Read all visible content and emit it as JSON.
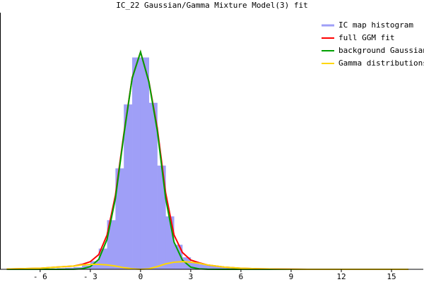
{
  "chart_data": {
    "type": "histogram",
    "title": "IC_22 Gaussian/Gamma Mixture Model(3) fit",
    "name": "IC map histogram",
    "color": "#9f9ff7",
    "bins": [
      -6,
      -5.5,
      -5,
      -4.5,
      -4,
      -3.5,
      -3,
      -2.5,
      -2,
      -1.5,
      -1,
      -0.5,
      0,
      0.5,
      1,
      1.5,
      2,
      2.5,
      3,
      3.5,
      4,
      4.5,
      5,
      5.5,
      6,
      6.5,
      7,
      7.5,
      8
    ],
    "values": [
      0.001,
      0.001,
      0.002,
      0.003,
      0.004,
      0.007,
      0.015,
      0.038,
      0.09,
      0.185,
      0.302,
      0.388,
      0.388,
      0.305,
      0.19,
      0.097,
      0.045,
      0.022,
      0.013,
      0.009,
      0.007,
      0.005,
      0.004,
      0.003,
      0.002,
      0.001,
      0.001,
      0.001
    ],
    "overlays": {
      "type": "line",
      "x": [
        -8,
        -6,
        -5,
        -4,
        -3.5,
        -3,
        -2.5,
        -2,
        -1.5,
        -1,
        -0.5,
        0,
        0.5,
        1,
        1.5,
        2,
        2.5,
        3,
        3.5,
        4,
        5,
        6,
        7,
        8,
        10,
        12,
        14,
        16
      ],
      "series": [
        {
          "name": "full GGM fit",
          "color": "#ff0000",
          "values": [
            0.0005,
            0.002,
            0.004,
            0.006,
            0.009,
            0.014,
            0.027,
            0.063,
            0.136,
            0.248,
            0.351,
            0.398,
            0.344,
            0.259,
            0.14,
            0.063,
            0.031,
            0.017,
            0.012,
            0.008,
            0.004,
            0.002,
            0.001,
            0.0005,
            0,
            0,
            0,
            0
          ]
        },
        {
          "name": "background Gaussian",
          "color": "#00a000",
          "values": [
            0,
            0,
            0,
            0.0001,
            0.0009,
            0.005,
            0.018,
            0.055,
            0.13,
            0.245,
            0.35,
            0.398,
            0.343,
            0.254,
            0.13,
            0.05,
            0.017,
            0.004,
            0.0008,
            0.0001,
            0,
            0,
            0,
            0,
            0,
            0,
            0,
            0
          ]
        },
        {
          "name": "Gamma distributions",
          "color": "#ffd700",
          "values": [
            0.0005,
            0.002,
            0.004,
            0.006,
            0.008,
            0.009,
            0.009,
            0.008,
            0.006,
            0.003,
            0.001,
            0,
            0.001,
            0.005,
            0.01,
            0.013,
            0.014,
            0.013,
            0.011,
            0.008,
            0.004,
            0.002,
            0.001,
            0.0005,
            0,
            0,
            0,
            0
          ]
        }
      ]
    },
    "xlim": [
      -8.4,
      16.9
    ],
    "ylim": [
      0,
      0.47
    ],
    "xticks": [
      {
        "value": -6,
        "label": "- 6"
      },
      {
        "value": -3,
        "label": "- 3"
      },
      0,
      3,
      6,
      9,
      12,
      15
    ],
    "legend": "upper right"
  }
}
